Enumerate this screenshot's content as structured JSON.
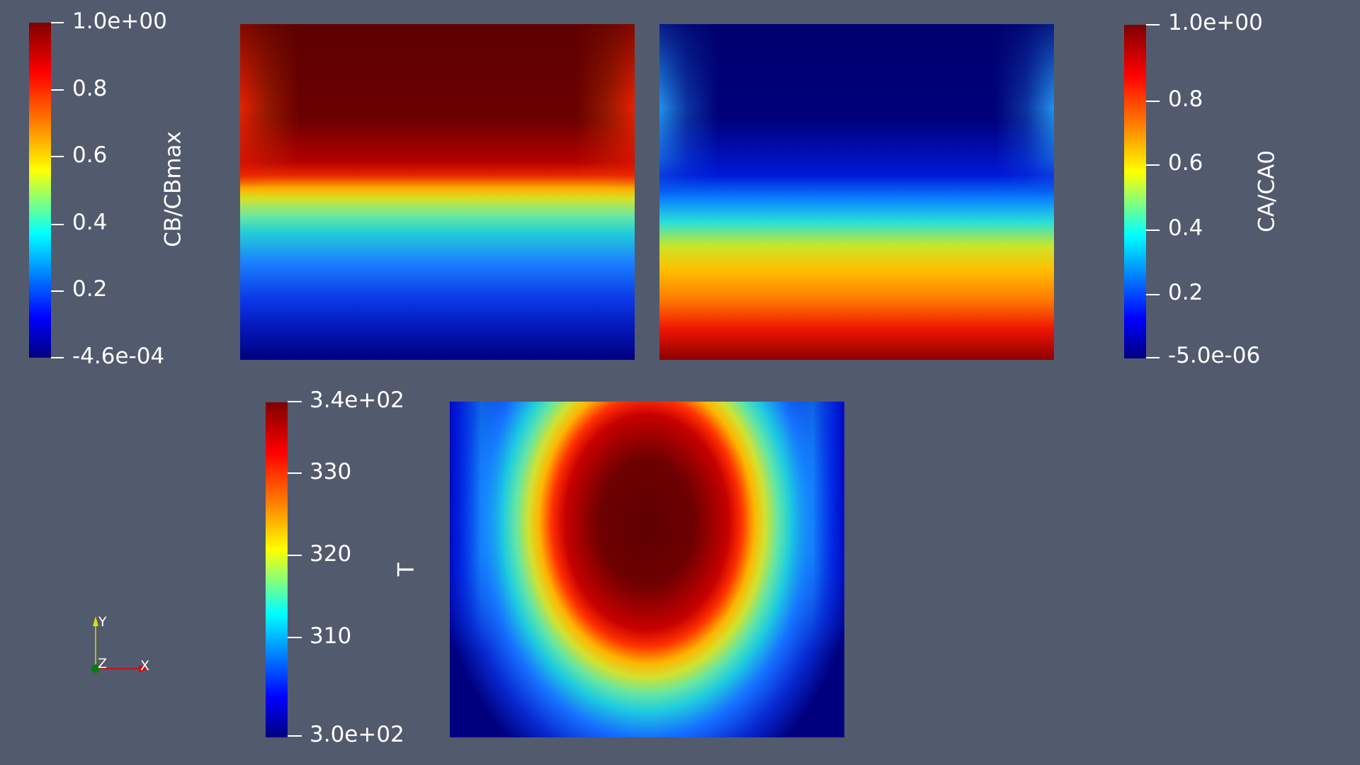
{
  "colormap": [
    "#00007f",
    "#0000ff",
    "#00ffff",
    "#ffff00",
    "#ff7f00",
    "#ff0000",
    "#7f0000"
  ],
  "background_color": "#525a6e",
  "colorbars": {
    "cb": {
      "title": "CB/CBmax",
      "ticks": [
        "1.0e+00",
        "0.8",
        "0.6",
        "0.4",
        "0.2",
        "-4.6e-04"
      ]
    },
    "ca": {
      "title": "CA/CA0",
      "ticks": [
        "1.0e+00",
        "0.8",
        "0.6",
        "0.4",
        "0.2",
        "-5.0e-06"
      ]
    },
    "t": {
      "title": "T",
      "ticks": [
        "3.4e+02",
        "330",
        "320",
        "310",
        "3.0e+02"
      ]
    }
  },
  "orientation_axes": {
    "y": "Y",
    "z": "Z",
    "x": "X"
  }
}
